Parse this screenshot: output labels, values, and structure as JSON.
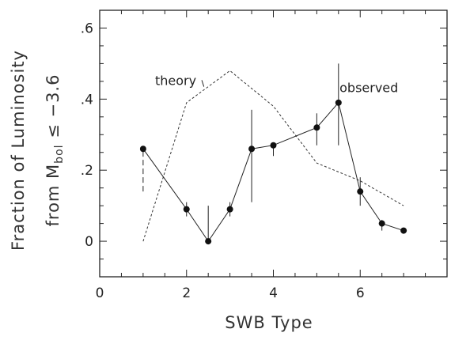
{
  "chart_data": {
    "type": "line",
    "xlabel": "SWB Type",
    "ylabel_line1": "Fraction of Luminosity",
    "ylabel_line2_prefix": "from M",
    "ylabel_line2_sub": "bol",
    "ylabel_line2_suffix": " ≤ −3.6",
    "xlim": [
      0,
      8
    ],
    "ylim": [
      -0.1,
      0.65
    ],
    "xticks": [
      0,
      2,
      4,
      6
    ],
    "xtick_labels": [
      "0",
      "2",
      "4",
      "6"
    ],
    "yticks": [
      0,
      0.2,
      0.4,
      0.6
    ],
    "ytick_labels": [
      "0",
      ".2",
      ".4",
      ".6"
    ],
    "grid": false,
    "series": [
      {
        "name": "observed",
        "style": "solid-with-markers",
        "x": [
          1,
          2,
          2.5,
          3,
          3.5,
          4,
          5,
          5.5,
          6,
          6.5,
          7
        ],
        "y": [
          0.26,
          0.09,
          0.0,
          0.09,
          0.26,
          0.27,
          0.32,
          0.39,
          0.14,
          0.05,
          0.03
        ],
        "err_low": [
          0.12,
          0.02,
          0.0,
          0.02,
          0.15,
          0.03,
          0.05,
          0.12,
          0.04,
          0.02,
          0.005
        ],
        "err_high": [
          0.0,
          0.02,
          0.1,
          0.02,
          0.11,
          0.0,
          0.04,
          0.11,
          0.04,
          0.01,
          0.005
        ]
      },
      {
        "name": "theory",
        "style": "dashed",
        "x": [
          1,
          2,
          3,
          4,
          5,
          6,
          7
        ],
        "y": [
          0.0,
          0.39,
          0.48,
          0.38,
          0.22,
          0.17,
          0.1
        ]
      }
    ],
    "annotations": [
      {
        "text": "theory",
        "x": 1.75,
        "y": 0.44
      },
      {
        "text": "observed",
        "x": 6.2,
        "y": 0.42
      }
    ]
  }
}
